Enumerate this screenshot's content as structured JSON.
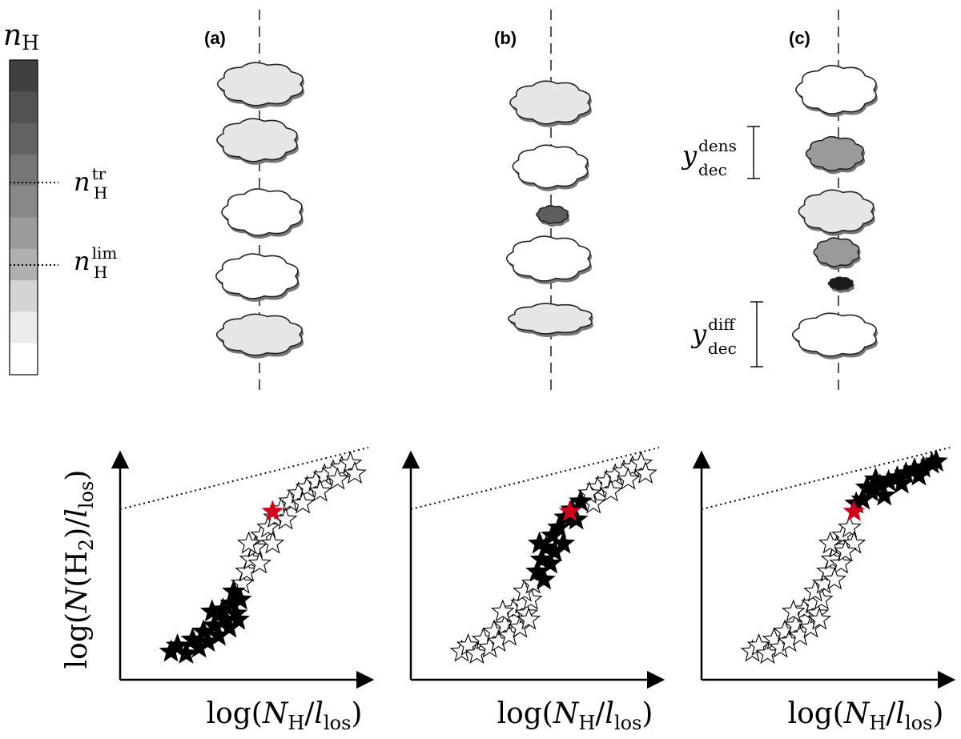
{
  "colorbar": {
    "title_main": "n",
    "title_sub": "H",
    "marks": [
      {
        "main": "n",
        "sub": "H",
        "sup": "tr"
      },
      {
        "main": "n",
        "sub": "H",
        "sup": "lim"
      }
    ],
    "shades": [
      "#404040",
      "#525252",
      "#636363",
      "#767676",
      "#888888",
      "#9b9b9b",
      "#b0b0b0",
      "#d4d4d4",
      "#ececec",
      "#ffffff"
    ]
  },
  "panels": [
    {
      "label": "(a)",
      "clouds": [
        {
          "shade": "light"
        },
        {
          "shade": "light"
        },
        {
          "shade": "white"
        },
        {
          "shade": "white"
        },
        {
          "shade": "light"
        }
      ],
      "brackets": []
    },
    {
      "label": "(b)",
      "clouds": [
        {
          "shade": "light"
        },
        {
          "shade": "white"
        },
        {
          "shade": "dark"
        },
        {
          "shade": "white"
        },
        {
          "shade": "light"
        }
      ],
      "brackets": []
    },
    {
      "label": "(c)",
      "clouds": [
        {
          "shade": "white"
        },
        {
          "shade": "mid"
        },
        {
          "shade": "light"
        },
        {
          "shade": "mid"
        },
        {
          "shade": "black"
        },
        {
          "shade": "white"
        }
      ],
      "brackets": [
        {
          "main": "y",
          "sub": "dec",
          "sup": "dens"
        },
        {
          "main": "y",
          "sub": "dec",
          "sup": "diff"
        }
      ]
    }
  ],
  "axes": {
    "ylabel": {
      "pre": "log(",
      "main": "N",
      "paren_open": "(H",
      "sub2": "2",
      "paren_close": ")/",
      "l": "l",
      "lsub": "los",
      "end": ")"
    },
    "xlabel": {
      "pre": "log(",
      "main": "N",
      "sub": "H",
      "slash": "/",
      "l": "l",
      "lsub": "los",
      "end": ")"
    }
  },
  "chart_data": [
    {
      "type": "scatter",
      "panel": "(a)",
      "series": [
        {
          "marker": "filled-black-star",
          "points": [
            [
              0.05,
              0.04
            ],
            [
              0.08,
              0.07
            ],
            [
              0.12,
              0.03
            ],
            [
              0.15,
              0.1
            ],
            [
              0.18,
              0.06
            ],
            [
              0.2,
              0.14
            ],
            [
              0.22,
              0.09
            ],
            [
              0.25,
              0.17
            ],
            [
              0.27,
              0.12
            ],
            [
              0.3,
              0.2
            ],
            [
              0.29,
              0.25
            ],
            [
              0.32,
              0.16
            ],
            [
              0.33,
              0.28
            ],
            [
              0.35,
              0.23
            ],
            [
              0.37,
              0.3
            ],
            [
              0.36,
              0.2
            ],
            [
              0.24,
              0.24
            ],
            [
              0.34,
              0.34
            ]
          ]
        },
        {
          "marker": "hollow-star",
          "points": [
            [
              0.38,
              0.38
            ],
            [
              0.4,
              0.44
            ],
            [
              0.42,
              0.5
            ],
            [
              0.44,
              0.56
            ],
            [
              0.47,
              0.62
            ],
            [
              0.5,
              0.66
            ],
            [
              0.53,
              0.71
            ],
            [
              0.56,
              0.75
            ],
            [
              0.6,
              0.79
            ],
            [
              0.64,
              0.83
            ],
            [
              0.68,
              0.86
            ],
            [
              0.72,
              0.89
            ],
            [
              0.76,
              0.92
            ],
            [
              0.8,
              0.94
            ],
            [
              0.84,
              0.96
            ],
            [
              0.88,
              0.98
            ],
            [
              0.41,
              0.58
            ],
            [
              0.46,
              0.48
            ],
            [
              0.52,
              0.58
            ],
            [
              0.58,
              0.7
            ],
            [
              0.66,
              0.78
            ],
            [
              0.74,
              0.84
            ],
            [
              0.82,
              0.9
            ],
            [
              0.9,
              0.93
            ]
          ]
        },
        {
          "marker": "red-star",
          "points": [
            [
              0.52,
              0.74
            ]
          ]
        }
      ],
      "reference_line": "dotted"
    },
    {
      "type": "scatter",
      "panel": "(b)",
      "series": [
        {
          "marker": "hollow-star",
          "points": [
            [
              0.05,
              0.04
            ],
            [
              0.08,
              0.07
            ],
            [
              0.12,
              0.03
            ],
            [
              0.15,
              0.1
            ],
            [
              0.18,
              0.06
            ],
            [
              0.2,
              0.14
            ],
            [
              0.22,
              0.09
            ],
            [
              0.25,
              0.17
            ],
            [
              0.27,
              0.12
            ],
            [
              0.3,
              0.2
            ],
            [
              0.29,
              0.25
            ],
            [
              0.32,
              0.16
            ],
            [
              0.33,
              0.28
            ],
            [
              0.35,
              0.23
            ],
            [
              0.37,
              0.3
            ],
            [
              0.36,
              0.2
            ],
            [
              0.24,
              0.24
            ],
            [
              0.34,
              0.34
            ],
            [
              0.38,
              0.38
            ],
            [
              0.68,
              0.86
            ],
            [
              0.72,
              0.89
            ],
            [
              0.76,
              0.92
            ],
            [
              0.8,
              0.94
            ],
            [
              0.84,
              0.96
            ],
            [
              0.88,
              0.98
            ],
            [
              0.66,
              0.78
            ],
            [
              0.74,
              0.84
            ],
            [
              0.82,
              0.9
            ],
            [
              0.9,
              0.93
            ],
            [
              0.64,
              0.83
            ]
          ]
        },
        {
          "marker": "filled-black-star",
          "points": [
            [
              0.4,
              0.44
            ],
            [
              0.42,
              0.5
            ],
            [
              0.44,
              0.56
            ],
            [
              0.47,
              0.62
            ],
            [
              0.5,
              0.66
            ],
            [
              0.53,
              0.71
            ],
            [
              0.56,
              0.75
            ],
            [
              0.6,
              0.79
            ],
            [
              0.41,
              0.58
            ],
            [
              0.46,
              0.48
            ],
            [
              0.52,
              0.58
            ],
            [
              0.58,
              0.7
            ],
            [
              0.43,
              0.4
            ],
            [
              0.48,
              0.54
            ]
          ]
        },
        {
          "marker": "red-star",
          "points": [
            [
              0.55,
              0.74
            ]
          ]
        }
      ],
      "reference_line": "dotted"
    },
    {
      "type": "scatter",
      "panel": "(c)",
      "series": [
        {
          "marker": "hollow-star",
          "points": [
            [
              0.05,
              0.04
            ],
            [
              0.08,
              0.07
            ],
            [
              0.12,
              0.03
            ],
            [
              0.15,
              0.1
            ],
            [
              0.18,
              0.06
            ],
            [
              0.2,
              0.14
            ],
            [
              0.22,
              0.09
            ],
            [
              0.25,
              0.17
            ],
            [
              0.27,
              0.12
            ],
            [
              0.3,
              0.2
            ],
            [
              0.29,
              0.25
            ],
            [
              0.32,
              0.16
            ],
            [
              0.33,
              0.28
            ],
            [
              0.35,
              0.23
            ],
            [
              0.37,
              0.3
            ],
            [
              0.36,
              0.2
            ],
            [
              0.24,
              0.24
            ],
            [
              0.34,
              0.34
            ],
            [
              0.38,
              0.38
            ],
            [
              0.4,
              0.44
            ],
            [
              0.42,
              0.5
            ],
            [
              0.44,
              0.56
            ],
            [
              0.47,
              0.62
            ],
            [
              0.5,
              0.66
            ],
            [
              0.41,
              0.58
            ],
            [
              0.46,
              0.48
            ],
            [
              0.52,
              0.58
            ],
            [
              0.43,
              0.4
            ],
            [
              0.48,
              0.54
            ]
          ]
        },
        {
          "marker": "filled-black-star",
          "points": [
            [
              0.53,
              0.78
            ],
            [
              0.56,
              0.8
            ],
            [
              0.6,
              0.84
            ],
            [
              0.64,
              0.87
            ],
            [
              0.68,
              0.89
            ],
            [
              0.72,
              0.91
            ],
            [
              0.76,
              0.93
            ],
            [
              0.8,
              0.95
            ],
            [
              0.84,
              0.96
            ],
            [
              0.88,
              0.98
            ],
            [
              0.58,
              0.86
            ],
            [
              0.66,
              0.82
            ],
            [
              0.74,
              0.88
            ],
            [
              0.82,
              0.92
            ],
            [
              0.9,
              0.99
            ],
            [
              0.62,
              0.9
            ]
          ]
        },
        {
          "marker": "red-star",
          "points": [
            [
              0.52,
              0.74
            ]
          ]
        }
      ],
      "reference_line": "dotted"
    }
  ]
}
